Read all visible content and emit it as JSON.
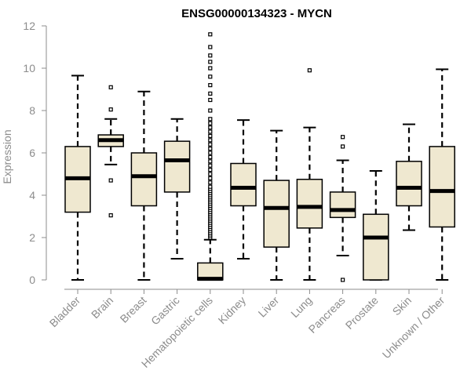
{
  "chart_data": {
    "type": "boxplot",
    "title": "ENSG00000134323 - MYCN",
    "xlabel": "",
    "ylabel": "Expression",
    "ylim": [
      0,
      12
    ],
    "yticks": [
      0,
      2,
      4,
      6,
      8,
      10,
      12
    ],
    "categories": [
      "Bladder",
      "Brain",
      "Breast",
      "Gastric",
      "Hematopoietic cells",
      "Kidney",
      "Liver",
      "Lung",
      "Pancreas",
      "Prostate",
      "Skin",
      "Unknown / Other"
    ],
    "boxes": [
      {
        "min": 0.0,
        "q1": 3.2,
        "median": 4.8,
        "q3": 6.3,
        "max": 9.65,
        "outliers": []
      },
      {
        "min": 5.45,
        "q1": 6.3,
        "median": 6.6,
        "q3": 6.85,
        "max": 7.6,
        "outliers": [
          3.05,
          4.7,
          8.05,
          9.1
        ]
      },
      {
        "min": 0.0,
        "q1": 3.5,
        "median": 4.9,
        "q3": 6.0,
        "max": 8.9,
        "outliers": []
      },
      {
        "min": 1.0,
        "q1": 4.15,
        "median": 5.65,
        "q3": 6.55,
        "max": 7.6,
        "outliers": []
      },
      {
        "min": 0.0,
        "q1": 0.0,
        "median": 0.05,
        "q3": 0.8,
        "max": 1.9,
        "outliers": [
          2.0,
          2.1,
          2.2,
          2.3,
          2.4,
          2.5,
          2.6,
          2.7,
          2.8,
          2.9,
          3.0,
          3.1,
          3.2,
          3.3,
          3.4,
          3.5,
          3.6,
          3.7,
          3.8,
          3.9,
          4.0,
          4.1,
          4.2,
          4.3,
          4.4,
          4.6,
          4.8,
          5.0,
          5.2,
          5.4,
          5.6,
          5.8,
          6.0,
          6.2,
          6.4,
          6.6,
          6.8,
          7.0,
          7.2,
          7.4,
          7.6,
          8.0,
          8.5,
          8.8,
          9.2,
          9.6,
          10.0,
          10.3,
          10.6,
          11.0,
          11.6
        ]
      },
      {
        "min": 1.0,
        "q1": 3.5,
        "median": 4.35,
        "q3": 5.5,
        "max": 7.55,
        "outliers": []
      },
      {
        "min": 0.0,
        "q1": 1.55,
        "median": 3.4,
        "q3": 4.7,
        "max": 7.05,
        "outliers": []
      },
      {
        "min": 0.0,
        "q1": 2.45,
        "median": 3.45,
        "q3": 4.75,
        "max": 7.2,
        "outliers": [
          9.9
        ]
      },
      {
        "min": 1.15,
        "q1": 2.95,
        "median": 3.3,
        "q3": 4.15,
        "max": 5.65,
        "outliers": [
          0.0,
          6.3,
          6.75
        ]
      },
      {
        "min": 0.0,
        "q1": 0.0,
        "median": 2.0,
        "q3": 3.1,
        "max": 5.15,
        "outliers": []
      },
      {
        "min": 2.35,
        "q1": 3.5,
        "median": 4.35,
        "q3": 5.6,
        "max": 7.35,
        "outliers": []
      },
      {
        "min": 0.0,
        "q1": 2.5,
        "median": 4.2,
        "q3": 6.3,
        "max": 9.95,
        "outliers": []
      }
    ]
  }
}
